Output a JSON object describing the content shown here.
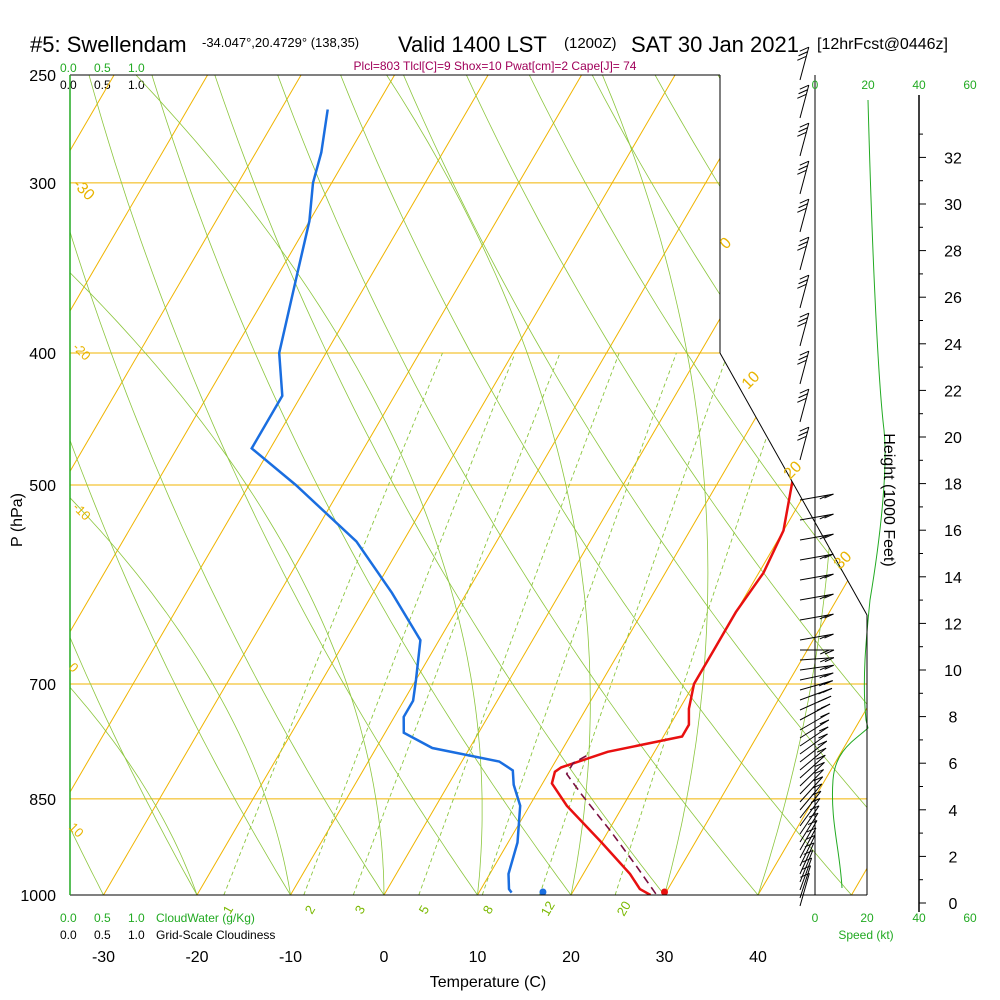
{
  "header": {
    "station": "#5: Swellendam",
    "coords": "-34.047°,20.4729° (138,35)",
    "valid": "Valid 1400 LST",
    "zulu": "(1200Z)",
    "date": "SAT 30 Jan 2021",
    "forecast": "[12hrFcst@0446z]",
    "indices": "Plcl=803 Tlcl[C]=9 Shox=10 Pwat[cm]=2 Cape[J]= 74"
  },
  "colors": {
    "isotherm": "#f0b400",
    "dry_adiabat": "#8cc63e",
    "mixing_ratio": "#8cc63e",
    "temperature": "#e81010",
    "dewpoint": "#1a6ee0",
    "parcel": "#7a1040",
    "cloud": "#22aa22",
    "indices": "#a0005a"
  },
  "cloud_scale": {
    "top_values": [
      "0.0",
      "0.5",
      "1.0"
    ],
    "top_values_black": [
      "0.0",
      "0.5",
      "1.0"
    ],
    "bottom_values": [
      "0.0",
      "0.5",
      "1.0"
    ],
    "bottom_values_black": [
      "0.0",
      "0.5",
      "1.0"
    ],
    "cloudwater_label": "CloudWater (g/Kg)",
    "cloudiness_label": "Grid-Scale Cloudiness"
  },
  "speed_axis": {
    "top_ticks": [
      "0",
      "20",
      "40",
      "60"
    ],
    "bottom_ticks": [
      "0",
      "20",
      "40",
      "60"
    ],
    "label": "Speed (kt)"
  },
  "height_axis": {
    "label": "Height (1000 Feet)",
    "ticks": [
      "0",
      "2",
      "4",
      "6",
      "8",
      "10",
      "12",
      "14",
      "16",
      "18",
      "20",
      "22",
      "24",
      "26",
      "28",
      "30",
      "32"
    ]
  },
  "chart_data": {
    "type": "line",
    "xlabel": "Temperature (C)",
    "ylabel": "P (hPa)",
    "xlim": [
      -35,
      45
    ],
    "ylim": [
      1000,
      250
    ],
    "y_scale": "log",
    "x_ticks": [
      -30,
      -20,
      -10,
      0,
      10,
      20,
      30,
      40
    ],
    "x_tick_labels": [
      "-30",
      "-20",
      "-10",
      "0",
      "10",
      "20",
      "30",
      "40"
    ],
    "p_ticks": [
      1000,
      850,
      700,
      500,
      400,
      300,
      250
    ],
    "p_tick_labels": [
      "1000",
      "850",
      "700",
      "500",
      "400",
      "300",
      "250"
    ],
    "isotherm_labels": [
      "-30",
      "-20",
      "-10",
      "0",
      "10",
      "0",
      "10",
      "20",
      "30"
    ],
    "mixing_ratio_labels": [
      "1",
      "2",
      "3",
      "5",
      "8",
      "12",
      "20"
    ],
    "series": [
      {
        "name": "Temperature",
        "points": [
          [
            28.5,
            1000
          ],
          [
            27,
            990
          ],
          [
            25,
            965
          ],
          [
            20,
            915
          ],
          [
            14,
            860
          ],
          [
            11,
            828
          ],
          [
            10.6,
            812
          ],
          [
            11,
            806
          ],
          [
            15,
            785
          ],
          [
            22,
            765
          ],
          [
            22,
            750
          ],
          [
            21,
            730
          ],
          [
            20,
            700
          ],
          [
            20,
            660
          ],
          [
            20,
            620
          ],
          [
            20.5,
            580
          ],
          [
            20,
            540
          ],
          [
            17,
            480
          ],
          [
            13,
            440
          ],
          [
            9,
            405
          ],
          [
            6,
            380
          ],
          [
            3,
            355
          ],
          [
            0,
            330
          ],
          [
            -4,
            300
          ],
          [
            -8,
            280
          ],
          [
            -11,
            265
          ]
        ]
      },
      {
        "name": "Dewpoint",
        "points": [
          [
            13.5,
            996
          ],
          [
            13,
            990
          ],
          [
            12,
            965
          ],
          [
            11,
            915
          ],
          [
            9,
            860
          ],
          [
            7,
            830
          ],
          [
            6,
            810
          ],
          [
            4,
            798
          ],
          [
            -4,
            780
          ],
          [
            -8,
            760
          ],
          [
            -9,
            740
          ],
          [
            -9,
            720
          ],
          [
            -10,
            695
          ],
          [
            -12,
            650
          ],
          [
            -18,
            600
          ],
          [
            -25,
            550
          ],
          [
            -35,
            500
          ],
          [
            -42,
            470
          ],
          [
            -42,
            440
          ],
          [
            -42,
            430
          ],
          [
            -45,
            400
          ],
          [
            -48,
            350
          ],
          [
            -50,
            320
          ],
          [
            -52,
            300
          ],
          [
            -53,
            285
          ],
          [
            -55,
            265
          ]
        ]
      },
      {
        "name": "Parcel",
        "points": [
          [
            29,
            998
          ],
          [
            25,
            950
          ],
          [
            20,
            895
          ],
          [
            15,
            845
          ],
          [
            12,
            815
          ],
          [
            12,
            800
          ],
          [
            13,
            790
          ]
        ]
      }
    ],
    "surface_temperature": 30,
    "surface_dewpoint": 17
  }
}
